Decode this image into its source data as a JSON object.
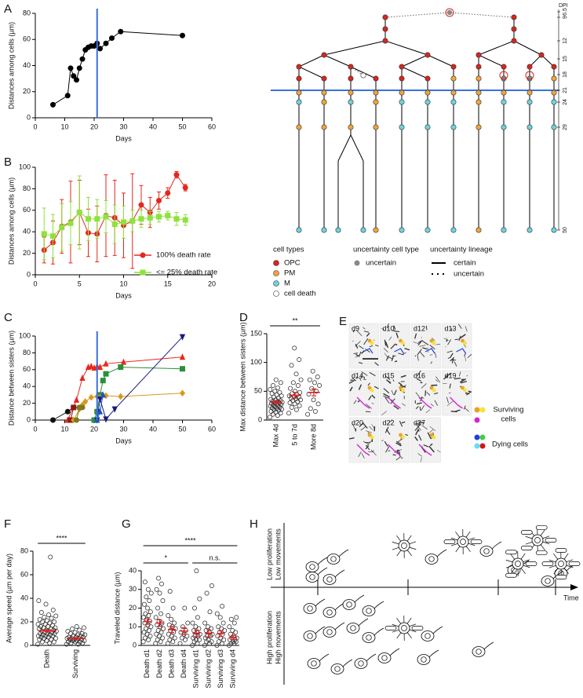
{
  "chart_data": [
    {
      "type": "line",
      "panel": "A",
      "x": [
        6,
        11,
        12,
        13,
        14,
        15,
        16,
        17,
        18,
        19,
        20,
        21,
        22,
        24,
        26,
        29,
        50
      ],
      "values": [
        10,
        17,
        38,
        32,
        29,
        38,
        45,
        52,
        54,
        55,
        55,
        57,
        53,
        57,
        61,
        66,
        63
      ],
      "color": "#000000",
      "xlim": [
        0,
        60
      ],
      "xticks": [
        0,
        10,
        20,
        30,
        40,
        50,
        60
      ],
      "ylim": [
        0,
        80
      ],
      "yticks": [
        0,
        20,
        40,
        60,
        80
      ],
      "xlabel": "Days",
      "ylabel": "Distances among cells (µm)",
      "vline": 21,
      "vline_color": "#3a6fe0"
    },
    {
      "type": "line",
      "panel": "B",
      "x": [
        1,
        2,
        3,
        4,
        5,
        6,
        7,
        8,
        9,
        10,
        11,
        12,
        13,
        14,
        15,
        16,
        17
      ],
      "series": [
        {
          "name": "100% death rate",
          "color": "#e3281e",
          "marker": "circle",
          "values": [
            23,
            30,
            45,
            49,
            58,
            39,
            38,
            55,
            53,
            46,
            50,
            65,
            58,
            69,
            76,
            93,
            81
          ],
          "errors": [
            12,
            20,
            25,
            38,
            30,
            22,
            26,
            38,
            35,
            30,
            44,
            18,
            14,
            8,
            5,
            3,
            3
          ]
        },
        {
          "name": "<= 25% death rate",
          "color": "#8ee23c",
          "marker": "square",
          "values": [
            38,
            36,
            44,
            48,
            58,
            52,
            52,
            54,
            47,
            49,
            50,
            52,
            53,
            54,
            55,
            52,
            51
          ],
          "errors": [
            24,
            20,
            22,
            20,
            34,
            20,
            18,
            15,
            18,
            15,
            10,
            8,
            6,
            5,
            4,
            6,
            5
          ]
        }
      ],
      "xlim": [
        0,
        20
      ],
      "xticks": [
        0,
        5,
        10,
        15,
        20
      ],
      "ylim": [
        0,
        100
      ],
      "yticks": [
        0,
        20,
        40,
        60,
        80,
        100
      ],
      "xlabel": "Days",
      "ylabel": "Distances among cells (µm)",
      "legend": "lower right"
    },
    {
      "type": "line",
      "panel": "C",
      "series": [
        {
          "color": "#111111",
          "marker": "circle",
          "x": [
            6,
            11,
            13,
            15
          ],
          "values": [
            0,
            10,
            15,
            15
          ]
        },
        {
          "color": "#e8291c",
          "marker": "triangle",
          "x": [
            11,
            14,
            16,
            18,
            19,
            20,
            21,
            22,
            24,
            30,
            50
          ],
          "values": [
            0,
            24,
            50,
            63,
            64,
            62,
            64,
            63,
            67,
            69,
            75
          ]
        },
        {
          "color": "#8b1a1a",
          "marker": "square",
          "x": [
            12,
            13
          ],
          "values": [
            0,
            15
          ]
        },
        {
          "color": "#2a8f3a",
          "marker": "square",
          "x": [
            20,
            21,
            22,
            23,
            24,
            29,
            50
          ],
          "values": [
            0,
            10,
            30,
            47,
            55,
            63,
            61
          ]
        },
        {
          "color": "#d69a20",
          "marker": "diamond",
          "x": [
            13,
            15,
            16,
            17,
            19,
            21,
            22,
            24,
            29,
            50
          ],
          "values": [
            0,
            13,
            18,
            22,
            27,
            28,
            27,
            29,
            28,
            32
          ]
        },
        {
          "color": "#7a7a1e",
          "marker": "circle",
          "x": [
            14,
            15,
            16
          ],
          "values": [
            0,
            15,
            15
          ]
        },
        {
          "color": "#1a1a7a",
          "marker": "triangle-down",
          "x": [
            21,
            22,
            24,
            27,
            50
          ],
          "values": [
            0,
            25,
            1,
            13,
            99
          ]
        },
        {
          "color": "#2050c8",
          "marker": "triangle",
          "x": [
            21,
            22,
            23
          ],
          "values": [
            0,
            10,
            30
          ]
        }
      ],
      "xlim": [
        0,
        60
      ],
      "xticks": [
        0,
        10,
        20,
        30,
        40,
        50,
        60
      ],
      "ylim": [
        0,
        100
      ],
      "yticks": [
        0,
        20,
        40,
        60,
        80,
        100
      ],
      "xlabel": "Days",
      "ylabel": "Distance between sisters (µm)",
      "vline": 21,
      "vline_color": "#3a6fe0"
    },
    {
      "type": "strip",
      "panel": "D",
      "categories": [
        "Max 4d",
        "5 to 7d",
        "More 8d"
      ],
      "values": [
        [
          5,
          8,
          10,
          12,
          14,
          15,
          17,
          18,
          19,
          20,
          21,
          22,
          23,
          24,
          25,
          26,
          27,
          28,
          29,
          30,
          30,
          31,
          32,
          33,
          34,
          35,
          36,
          38,
          40,
          42,
          44,
          46,
          48,
          50,
          53,
          56,
          60,
          65,
          70
        ],
        [
          12,
          18,
          22,
          25,
          28,
          30,
          32,
          34,
          35,
          37,
          38,
          40,
          41,
          42,
          44,
          46,
          48,
          50,
          55,
          60,
          65,
          70,
          80,
          95,
          105,
          125
        ],
        [
          10,
          15,
          20,
          28,
          35,
          45,
          50,
          55,
          60,
          65,
          70,
          75,
          85
        ]
      ],
      "means": [
        31,
        43,
        48
      ],
      "sems": [
        2.5,
        5,
        6
      ],
      "ylim": [
        0,
        150
      ],
      "yticks": [
        0,
        50,
        100,
        150
      ],
      "ylabel": "Max distance between sisters (µm)",
      "comparisons": [
        {
          "from": "Max 4d",
          "to": "More 8d",
          "label": "**"
        }
      ]
    },
    {
      "type": "strip",
      "panel": "F",
      "categories": [
        "Death",
        "Surviving"
      ],
      "values": [
        [
          1,
          2,
          3,
          3,
          4,
          5,
          5,
          6,
          6,
          7,
          7,
          8,
          8,
          8,
          9,
          9,
          10,
          10,
          10,
          11,
          11,
          12,
          12,
          12,
          13,
          13,
          14,
          14,
          15,
          15,
          16,
          16,
          17,
          18,
          18,
          19,
          20,
          20,
          21,
          22,
          23,
          24,
          25,
          26,
          28,
          30,
          35,
          38,
          75
        ],
        [
          1,
          1,
          2,
          2,
          3,
          3,
          3,
          4,
          4,
          4,
          5,
          5,
          5,
          6,
          6,
          6,
          7,
          7,
          7,
          8,
          8,
          9,
          9,
          10,
          10,
          11,
          12,
          13,
          14,
          15,
          16
        ]
      ],
      "means": [
        12.5,
        6
      ],
      "sems": [
        1,
        0.7
      ],
      "ylim": [
        0,
        80
      ],
      "yticks": [
        0,
        20,
        40,
        60,
        80
      ],
      "ylabel": "Average speed (µm per day)",
      "comparisons": [
        {
          "from": "Death",
          "to": "Surviving",
          "label": "****"
        }
      ]
    },
    {
      "type": "strip",
      "panel": "G",
      "categories": [
        "Death d1",
        "Death d2",
        "Death d3",
        "Death d4",
        "Surviving d1",
        "Surviving d2",
        "Surviving d3",
        "Surviving d4"
      ],
      "values": [
        [
          2,
          3,
          4,
          5,
          6,
          7,
          8,
          9,
          10,
          11,
          12,
          13,
          14,
          15,
          16,
          17,
          18,
          20,
          22,
          24,
          26,
          28,
          30,
          34
        ],
        [
          1,
          2,
          3,
          4,
          5,
          6,
          7,
          8,
          9,
          10,
          11,
          12,
          13,
          15,
          17,
          20,
          24,
          28,
          30,
          33,
          36
        ],
        [
          1,
          2,
          3,
          4,
          5,
          6,
          7,
          8,
          9,
          10,
          11,
          12,
          14,
          16,
          20,
          29
        ],
        [
          1,
          3,
          4,
          5,
          6,
          7,
          8,
          10,
          12,
          20
        ],
        [
          0,
          1,
          2,
          3,
          3,
          4,
          5,
          5,
          6,
          7,
          8,
          9,
          10,
          12,
          15,
          20,
          25,
          40
        ],
        [
          0,
          1,
          2,
          2,
          3,
          4,
          5,
          5,
          6,
          7,
          8,
          9,
          10,
          12,
          18,
          28,
          32
        ],
        [
          0,
          1,
          2,
          3,
          4,
          5,
          6,
          7,
          8,
          9,
          10,
          12,
          15,
          17,
          21
        ],
        [
          0,
          1,
          1,
          2,
          2,
          3,
          3,
          4,
          4,
          5,
          6,
          7,
          8,
          10,
          12,
          14,
          15
        ]
      ],
      "means": [
        12.8,
        12,
        8.5,
        7.7,
        6.5,
        6.5,
        6.3,
        4.2
      ],
      "sems": [
        1.5,
        1.8,
        1.6,
        1.8,
        1.7,
        1.9,
        1.5,
        1.1
      ],
      "ylim": [
        0,
        40
      ],
      "yticks": [
        0,
        10,
        20,
        30,
        40
      ],
      "ylabel": "Traveled distance (µm)",
      "comparisons": [
        {
          "from": "Death d1",
          "to": "Surviving d4",
          "label": "****"
        },
        {
          "from": "Death d1",
          "to": "Death d4",
          "label": "*"
        },
        {
          "from": "Surviving d1",
          "to": "Surviving d4",
          "label": "n.s."
        }
      ]
    }
  ],
  "lineage_tree": {
    "dpi_title": "DPI",
    "dpi_ticks": [
      "6.5",
      "9",
      "12",
      "15",
      "18",
      "21",
      "24",
      "29",
      "50"
    ],
    "legend": {
      "cell_types_title": "cell types",
      "cell_types": [
        "OPC",
        "PM",
        "M",
        "cell death"
      ],
      "uncertainty_type_title": "uncertainty cell type",
      "uncertainty_type": [
        "uncertain"
      ],
      "uncertainty_lineage_title": "uncertainty lineage",
      "uncertainty_lineage": [
        "certain",
        "uncertain"
      ]
    }
  },
  "panel_e": {
    "label": "E",
    "tiles": [
      "d9",
      "d10",
      "d12",
      "d13",
      "d14",
      "d15",
      "d16",
      "d19",
      "d20",
      "d22",
      "d27"
    ],
    "legend": [
      [
        "Surviving",
        "cells"
      ],
      [
        "Dying cells"
      ]
    ]
  },
  "panel_h": {
    "label": "H",
    "upper": [
      "Low proliferation",
      "Low movements"
    ],
    "lower": [
      "High proliferation",
      "High movements"
    ],
    "time": "Time"
  }
}
